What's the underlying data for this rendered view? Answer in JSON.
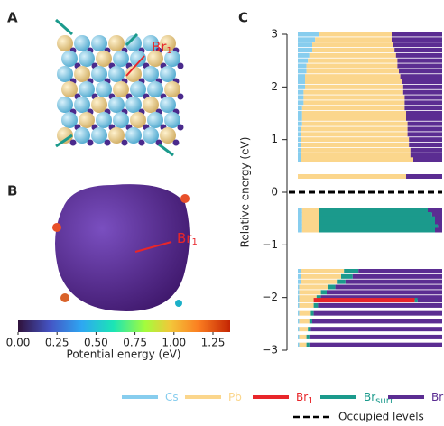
{
  "panels": {
    "a": "A",
    "b": "B",
    "c": "C"
  },
  "annotations": {
    "a_site": {
      "text": "Br",
      "subscript": "1"
    },
    "b_site": {
      "text": "Br",
      "subscript": "1"
    }
  },
  "colorbar": {
    "label": "Potential energy (eV)",
    "lim": [
      0,
      1.36
    ],
    "ticks": [
      {
        "value": 0,
        "label": "0.00"
      },
      {
        "value": 0.25,
        "label": "0.25"
      },
      {
        "value": 0.5,
        "label": "0.50"
      },
      {
        "value": 0.75,
        "label": "0.75"
      },
      {
        "value": 1,
        "label": "1.00"
      },
      {
        "value": 1.25,
        "label": "1.25"
      }
    ]
  },
  "chart_data": {
    "type": "bar",
    "orientation": "horizontal",
    "stacked": true,
    "ylabel": "Relative energy (eV)",
    "ylim": [
      -3,
      3
    ],
    "yticks": [
      {
        "value": -3,
        "label": "−3"
      },
      {
        "value": -2,
        "label": "−2"
      },
      {
        "value": -1,
        "label": "−1"
      },
      0,
      1,
      2,
      3
    ],
    "xlim": [
      0,
      1
    ],
    "levels": [
      3.0,
      2.9,
      2.8,
      2.7,
      2.6,
      2.5,
      2.4,
      2.3,
      2.2,
      2.1,
      2.0,
      1.9,
      1.8,
      1.7,
      1.6,
      1.5,
      1.4,
      1.3,
      1.2,
      1.1,
      1.0,
      0.9,
      0.8,
      0.7,
      0.62,
      0.3,
      -0.35,
      -0.42,
      -0.5,
      -0.58,
      -0.65,
      -0.72,
      -1.5,
      -1.6,
      -1.7,
      -1.8,
      -1.9,
      -2.0,
      -2.05,
      -2.15,
      -2.3,
      -2.45,
      -2.6,
      -2.75,
      -2.9
    ],
    "series": [
      {
        "name": "Cs",
        "color": "#87cdee",
        "values": [
          0.15,
          0.12,
          0.1,
          0.1,
          0.08,
          0.07,
          0.06,
          0.06,
          0.05,
          0.05,
          0.05,
          0.04,
          0.04,
          0.04,
          0.03,
          0.03,
          0.03,
          0.03,
          0.02,
          0.02,
          0.02,
          0.02,
          0.02,
          0.02,
          0.02,
          0,
          0.03,
          0.03,
          0.03,
          0.03,
          0.03,
          0.03,
          0.02,
          0.02,
          0.02,
          0.01,
          0.01,
          0.01,
          0.01,
          0.01,
          0.01,
          0.01,
          0.01,
          0.01,
          0.01
        ]
      },
      {
        "name": "Pb",
        "color": "#fbd68c",
        "values": [
          0.5,
          0.53,
          0.56,
          0.57,
          0.6,
          0.62,
          0.63,
          0.64,
          0.66,
          0.67,
          0.68,
          0.69,
          0.7,
          0.7,
          0.71,
          0.72,
          0.72,
          0.73,
          0.74,
          0.74,
          0.75,
          0.75,
          0.76,
          0.76,
          0.78,
          0.75,
          0.12,
          0.12,
          0.12,
          0.12,
          0.12,
          0.12,
          0.3,
          0.28,
          0.25,
          0.2,
          0.15,
          0.12,
          0.1,
          0.1,
          0.08,
          0.07,
          0.06,
          0.05,
          0.05
        ]
      },
      {
        "name": "Br",
        "subscript": "1",
        "color": "#e8262a",
        "values": [
          0,
          0,
          0,
          0,
          0,
          0,
          0,
          0,
          0,
          0,
          0,
          0,
          0,
          0,
          0,
          0,
          0,
          0,
          0,
          0,
          0,
          0,
          0,
          0,
          0,
          0,
          0,
          0,
          0,
          0,
          0,
          0,
          0,
          0,
          0,
          0,
          0,
          0,
          0.7,
          0,
          0,
          0,
          0,
          0,
          0
        ]
      },
      {
        "name": "Br",
        "subscript": "surf",
        "color": "#1b9a8c",
        "values": [
          0,
          0,
          0,
          0,
          0,
          0,
          0,
          0,
          0,
          0,
          0,
          0,
          0,
          0,
          0,
          0,
          0,
          0,
          0,
          0,
          0,
          0,
          0,
          0,
          0,
          0,
          0.75,
          0.78,
          0.8,
          0.8,
          0.82,
          0.8,
          0.1,
          0.08,
          0.06,
          0.05,
          0.04,
          0.03,
          0.02,
          0.03,
          0.02,
          0.02,
          0.02,
          0.02,
          0.02
        ]
      },
      {
        "name": "Br",
        "color": "#5b2d92",
        "values": [
          0.35,
          0.35,
          0.34,
          0.33,
          0.32,
          0.31,
          0.31,
          0.3,
          0.29,
          0.28,
          0.27,
          0.27,
          0.26,
          0.26,
          0.26,
          0.25,
          0.25,
          0.24,
          0.24,
          0.24,
          0.23,
          0.23,
          0.22,
          0.22,
          0.2,
          0.25,
          0.1,
          0.07,
          0.05,
          0.05,
          0.03,
          0.05,
          0.58,
          0.62,
          0.67,
          0.74,
          0.8,
          0.84,
          0.17,
          0.86,
          0.89,
          0.9,
          0.91,
          0.92,
          0.92
        ]
      }
    ],
    "reference_line": {
      "value": 0,
      "label": "Occupied levels",
      "color": "#000000"
    }
  }
}
